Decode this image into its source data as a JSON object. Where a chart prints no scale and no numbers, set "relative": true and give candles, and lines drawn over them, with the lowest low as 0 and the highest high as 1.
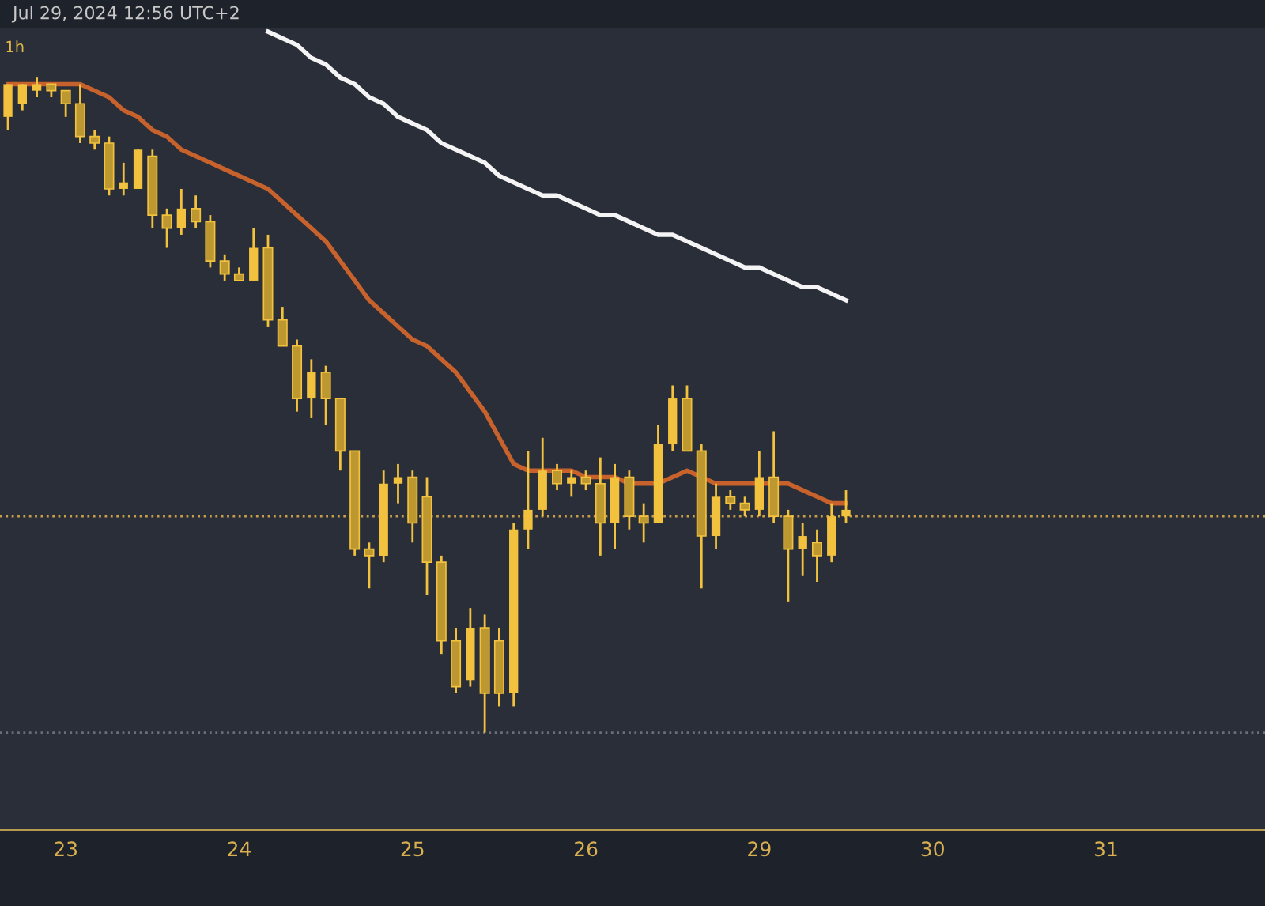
{
  "chart_data": {
    "type": "candlestick",
    "relative": true,
    "annotations": [
      "Jul 29, 2024 12:56 UTC+2",
      "1h"
    ],
    "categories": [
      null,
      null,
      null,
      null,
      "23",
      null,
      null,
      null,
      null,
      null,
      null,
      null,
      null,
      null,
      null,
      null,
      "24",
      null,
      null,
      null,
      null,
      null,
      null,
      null,
      null,
      null,
      null,
      null,
      "25",
      null,
      null,
      null,
      null,
      null,
      null,
      null,
      null,
      null,
      null,
      null,
      "26",
      null,
      null,
      null,
      null,
      null,
      null,
      null,
      null,
      null,
      null,
      null,
      "29",
      null,
      null,
      null,
      null,
      null,
      null,
      null,
      null,
      null,
      null,
      null,
      "30",
      null,
      null,
      null,
      null,
      null,
      null,
      null,
      null,
      null,
      null,
      null,
      "31",
      null,
      null,
      null,
      null,
      null,
      null,
      null,
      null,
      null,
      null,
      null
    ],
    "color": "#f2c23e",
    "ohlc": [
      [
        0.94,
        0.99,
        0.92,
        0.99
      ],
      [
        0.96,
        0.99,
        0.95,
        0.99
      ],
      [
        0.98,
        1.0,
        0.97,
        0.99
      ],
      [
        0.99,
        0.99,
        0.97,
        0.98
      ],
      [
        0.98,
        0.98,
        0.94,
        0.96
      ],
      [
        0.96,
        0.99,
        0.9,
        0.91
      ],
      [
        0.91,
        0.92,
        0.89,
        0.9
      ],
      [
        0.9,
        0.91,
        0.82,
        0.83
      ],
      [
        0.83,
        0.87,
        0.82,
        0.84
      ],
      [
        0.83,
        0.89,
        0.83,
        0.89
      ],
      [
        0.88,
        0.89,
        0.77,
        0.79
      ],
      [
        0.79,
        0.8,
        0.74,
        0.77
      ],
      [
        0.77,
        0.83,
        0.76,
        0.8
      ],
      [
        0.8,
        0.82,
        0.77,
        0.78
      ],
      [
        0.78,
        0.79,
        0.71,
        0.72
      ],
      [
        0.72,
        0.73,
        0.69,
        0.7
      ],
      [
        0.7,
        0.71,
        0.69,
        0.69
      ],
      [
        0.69,
        0.77,
        0.69,
        0.74
      ],
      [
        0.74,
        0.76,
        0.62,
        0.63
      ],
      [
        0.63,
        0.65,
        0.59,
        0.59
      ],
      [
        0.59,
        0.6,
        0.49,
        0.51
      ],
      [
        0.51,
        0.57,
        0.48,
        0.55
      ],
      [
        0.55,
        0.56,
        0.47,
        0.51
      ],
      [
        0.51,
        0.51,
        0.4,
        0.43
      ],
      [
        0.43,
        0.43,
        0.27,
        0.28
      ],
      [
        0.28,
        0.29,
        0.22,
        0.27
      ],
      [
        0.27,
        0.4,
        0.26,
        0.38
      ],
      [
        0.38,
        0.41,
        0.35,
        0.39
      ],
      [
        0.39,
        0.4,
        0.29,
        0.32
      ],
      [
        0.36,
        0.39,
        0.21,
        0.26
      ],
      [
        0.26,
        0.27,
        0.12,
        0.14
      ],
      [
        0.14,
        0.16,
        0.06,
        0.07
      ],
      [
        0.08,
        0.19,
        0.07,
        0.16
      ],
      [
        0.16,
        0.18,
        0.0,
        0.06
      ],
      [
        0.14,
        0.16,
        0.04,
        0.06
      ],
      [
        0.06,
        0.32,
        0.04,
        0.31
      ],
      [
        0.31,
        0.43,
        0.28,
        0.34
      ],
      [
        0.34,
        0.45,
        0.33,
        0.4
      ],
      [
        0.4,
        0.41,
        0.37,
        0.38
      ],
      [
        0.38,
        0.4,
        0.36,
        0.39
      ],
      [
        0.39,
        0.4,
        0.37,
        0.38
      ],
      [
        0.38,
        0.42,
        0.27,
        0.32
      ],
      [
        0.32,
        0.41,
        0.28,
        0.39
      ],
      [
        0.39,
        0.4,
        0.31,
        0.33
      ],
      [
        0.33,
        0.35,
        0.29,
        0.32
      ],
      [
        0.32,
        0.47,
        0.32,
        0.44
      ],
      [
        0.44,
        0.53,
        0.43,
        0.51
      ],
      [
        0.51,
        0.53,
        0.43,
        0.43
      ],
      [
        0.43,
        0.44,
        0.22,
        0.3
      ],
      [
        0.3,
        0.38,
        0.28,
        0.36
      ],
      [
        0.36,
        0.37,
        0.34,
        0.35
      ],
      [
        0.35,
        0.36,
        0.33,
        0.34
      ],
      [
        0.34,
        0.43,
        0.33,
        0.39
      ],
      [
        0.39,
        0.46,
        0.32,
        0.33
      ],
      [
        0.33,
        0.34,
        0.2,
        0.28
      ],
      [
        0.28,
        0.32,
        0.24,
        0.3
      ],
      [
        0.29,
        0.31,
        0.23,
        0.27
      ],
      [
        0.27,
        0.35,
        0.26,
        0.33
      ],
      [
        0.33,
        0.37,
        0.32,
        0.34
      ],
      null,
      null,
      null,
      null,
      null,
      null,
      null,
      null,
      null,
      null,
      null,
      null,
      null,
      null,
      null,
      null,
      null,
      null,
      null,
      null,
      null,
      null,
      null,
      null,
      null,
      null,
      null,
      null,
      null
    ],
    "series": [
      {
        "type": "line",
        "color": "#c8622c",
        "values": [
          0.99,
          0.99,
          0.99,
          0.99,
          0.99,
          0.99,
          0.98,
          0.97,
          0.95,
          0.94,
          0.92,
          0.91,
          0.89,
          0.88,
          0.87,
          0.86,
          0.85,
          0.84,
          0.83,
          0.81,
          0.79,
          0.77,
          0.75,
          0.72,
          0.69,
          0.66,
          0.64,
          0.62,
          0.6,
          0.59,
          0.57,
          0.55,
          0.52,
          0.49,
          0.45,
          0.41,
          0.4,
          0.4,
          0.4,
          0.4,
          0.39,
          0.39,
          0.39,
          0.38,
          0.38,
          0.38,
          0.39,
          0.4,
          0.39,
          0.38,
          0.38,
          0.38,
          0.38,
          0.38,
          0.38,
          0.37,
          0.36,
          0.35,
          0.35,
          null,
          null,
          null,
          null,
          null,
          null,
          null,
          null,
          null,
          null,
          null,
          null,
          null,
          null,
          null,
          null,
          null,
          null,
          null,
          null,
          null,
          null,
          null,
          null,
          null,
          null,
          null,
          null,
          null
        ]
      },
      {
        "type": "line",
        "color": "#f4f4f4",
        "values": [
          null,
          null,
          null,
          null,
          null,
          null,
          null,
          null,
          null,
          null,
          null,
          null,
          null,
          null,
          null,
          null,
          null,
          null,
          1.07,
          1.06,
          1.05,
          1.03,
          1.02,
          1.0,
          0.99,
          0.97,
          0.96,
          0.94,
          0.93,
          0.92,
          0.9,
          0.89,
          0.88,
          0.87,
          0.85,
          0.84,
          0.83,
          0.82,
          0.82,
          0.81,
          0.8,
          0.79,
          0.79,
          0.78,
          0.77,
          0.76,
          0.76,
          0.75,
          0.74,
          0.73,
          0.72,
          0.71,
          0.71,
          0.7,
          0.69,
          0.68,
          0.68,
          0.67,
          0.66,
          null,
          null,
          null,
          null,
          null,
          null,
          null,
          null,
          null,
          null,
          null,
          null,
          null,
          null,
          null,
          null,
          null,
          null,
          null,
          null,
          null,
          null,
          null,
          null,
          null,
          null,
          null,
          null,
          null
        ]
      }
    ],
    "ref_lines": [
      {
        "axis": "y",
        "value": 0.33,
        "color": "#c9a04a",
        "line_style": "dotted"
      },
      {
        "axis": "y",
        "value": 0,
        "color": "#6b6f7a",
        "line_style": "dotted"
      }
    ]
  }
}
